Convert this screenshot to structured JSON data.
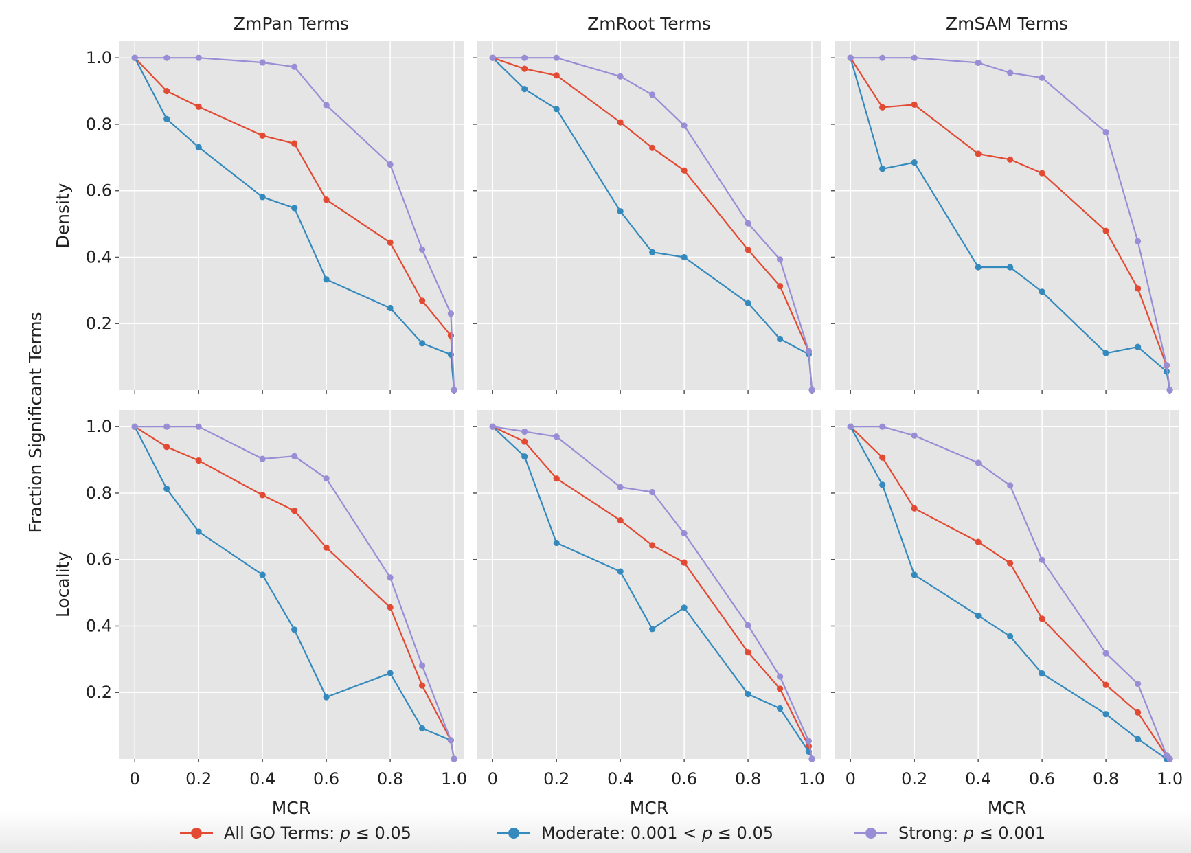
{
  "figure": {
    "y_label": "Fraction Significant Terms",
    "legend": [
      {
        "series": "all",
        "prefix": "All GO Terms: ",
        "var": "p",
        "suffix": " ≤ 0.05",
        "color": "#e24a33"
      },
      {
        "series": "moderate",
        "prefix": "Moderate: 0.001 < ",
        "var": "p",
        "suffix": " ≤ 0.05",
        "color": "#348abd"
      },
      {
        "series": "strong",
        "prefix": "Strong: ",
        "var": "p",
        "suffix": " ≤ 0.001",
        "color": "#988ed5"
      }
    ],
    "legend_placement": "bottom"
  },
  "chart_data": [
    {
      "type": "line",
      "row": "Density",
      "col": "ZmPan Terms",
      "title": "ZmPan Terms",
      "ylabel": "Density",
      "xlabel": "",
      "xlim": [
        -0.05,
        1.03
      ],
      "ylim": [
        0.0,
        1.05
      ],
      "xticks": [
        "0",
        "0.2",
        "0.4",
        "0.6",
        "0.8",
        "1.0"
      ],
      "yticks": [
        "0.2",
        "0.4",
        "0.6",
        "0.8",
        "1.0"
      ],
      "grid": true,
      "x": [
        0,
        0.1,
        0.2,
        0.4,
        0.5,
        0.6,
        0.8,
        0.9,
        0.99,
        1.0
      ],
      "series": [
        {
          "key": "all",
          "color": "#e24a33",
          "values": [
            1.0,
            0.9,
            0.853,
            0.766,
            0.742,
            0.573,
            0.444,
            0.269,
            0.164,
            0.0
          ]
        },
        {
          "key": "moderate",
          "color": "#348abd",
          "values": [
            1.0,
            0.816,
            0.731,
            0.581,
            0.548,
            0.333,
            0.247,
            0.141,
            0.107,
            0.0
          ]
        },
        {
          "key": "strong",
          "color": "#988ed5",
          "values": [
            1.0,
            1.0,
            1.0,
            0.986,
            0.973,
            0.858,
            0.679,
            0.423,
            0.23,
            0.0
          ]
        }
      ]
    },
    {
      "type": "line",
      "row": "Density",
      "col": "ZmRoot Terms",
      "title": "ZmRoot Terms",
      "ylabel": "",
      "xlabel": "",
      "xlim": [
        -0.05,
        1.03
      ],
      "ylim": [
        0.0,
        1.05
      ],
      "xticks": [
        "0",
        "0.2",
        "0.4",
        "0.6",
        "0.8",
        "1.0"
      ],
      "yticks": [
        "0.2",
        "0.4",
        "0.6",
        "0.8",
        "1.0"
      ],
      "grid": true,
      "x": [
        0,
        0.1,
        0.2,
        0.4,
        0.5,
        0.6,
        0.8,
        0.9,
        0.99,
        1.0
      ],
      "series": [
        {
          "key": "all",
          "color": "#e24a33",
          "values": [
            1.0,
            0.967,
            0.947,
            0.806,
            0.729,
            0.661,
            0.422,
            0.313,
            0.116,
            0.0
          ]
        },
        {
          "key": "moderate",
          "color": "#348abd",
          "values": [
            1.0,
            0.906,
            0.846,
            0.538,
            0.415,
            0.4,
            0.262,
            0.154,
            0.108,
            0.0
          ]
        },
        {
          "key": "strong",
          "color": "#988ed5",
          "values": [
            1.0,
            1.0,
            1.0,
            0.944,
            0.889,
            0.796,
            0.502,
            0.393,
            0.118,
            0.0
          ]
        }
      ]
    },
    {
      "type": "line",
      "row": "Density",
      "col": "ZmSAM Terms",
      "title": "ZmSAM Terms",
      "ylabel": "",
      "xlabel": "",
      "xlim": [
        -0.05,
        1.03
      ],
      "ylim": [
        0.0,
        1.05
      ],
      "xticks": [
        "0",
        "0.2",
        "0.4",
        "0.6",
        "0.8",
        "1.0"
      ],
      "yticks": [
        "0.2",
        "0.4",
        "0.6",
        "0.8",
        "1.0"
      ],
      "grid": true,
      "x": [
        0,
        0.1,
        0.2,
        0.4,
        0.5,
        0.6,
        0.8,
        0.9,
        0.99,
        1.0
      ],
      "series": [
        {
          "key": "all",
          "color": "#e24a33",
          "values": [
            1.0,
            0.851,
            0.859,
            0.711,
            0.694,
            0.653,
            0.479,
            0.306,
            0.074,
            0.0
          ]
        },
        {
          "key": "moderate",
          "color": "#348abd",
          "values": [
            1.0,
            0.666,
            0.685,
            0.37,
            0.37,
            0.296,
            0.111,
            0.13,
            0.056,
            0.0
          ]
        },
        {
          "key": "strong",
          "color": "#988ed5",
          "values": [
            1.0,
            1.0,
            1.0,
            0.985,
            0.955,
            0.94,
            0.776,
            0.448,
            0.075,
            0.0
          ]
        }
      ]
    },
    {
      "type": "line",
      "row": "Locality",
      "col": "ZmPan Terms",
      "title": "",
      "ylabel": "Locality",
      "xlabel": "MCR",
      "xlim": [
        -0.05,
        1.03
      ],
      "ylim": [
        0.0,
        1.05
      ],
      "xticks": [
        "0",
        "0.2",
        "0.4",
        "0.6",
        "0.8",
        "1.0"
      ],
      "yticks": [
        "0.2",
        "0.4",
        "0.6",
        "0.8",
        "1.0"
      ],
      "grid": true,
      "x": [
        0,
        0.1,
        0.2,
        0.4,
        0.5,
        0.6,
        0.8,
        0.9,
        0.99,
        1.0
      ],
      "series": [
        {
          "key": "all",
          "color": "#e24a33",
          "values": [
            1.0,
            0.939,
            0.898,
            0.794,
            0.747,
            0.636,
            0.456,
            0.221,
            0.056,
            0.0
          ]
        },
        {
          "key": "moderate",
          "color": "#348abd",
          "values": [
            1.0,
            0.813,
            0.684,
            0.554,
            0.389,
            0.186,
            0.258,
            0.092,
            0.056,
            0.0
          ]
        },
        {
          "key": "strong",
          "color": "#988ed5",
          "values": [
            1.0,
            1.0,
            1.0,
            0.903,
            0.911,
            0.844,
            0.546,
            0.281,
            0.056,
            0.0
          ]
        }
      ]
    },
    {
      "type": "line",
      "row": "Locality",
      "col": "ZmRoot Terms",
      "title": "",
      "ylabel": "",
      "xlabel": "MCR",
      "xlim": [
        -0.05,
        1.03
      ],
      "ylim": [
        0.0,
        1.05
      ],
      "xticks": [
        "0",
        "0.2",
        "0.4",
        "0.6",
        "0.8",
        "1.0"
      ],
      "yticks": [
        "0.2",
        "0.4",
        "0.6",
        "0.8",
        "1.0"
      ],
      "grid": true,
      "x": [
        0,
        0.1,
        0.2,
        0.4,
        0.5,
        0.6,
        0.8,
        0.9,
        0.99,
        1.0
      ],
      "series": [
        {
          "key": "all",
          "color": "#e24a33",
          "values": [
            1.0,
            0.955,
            0.844,
            0.718,
            0.643,
            0.591,
            0.321,
            0.211,
            0.038,
            0.0
          ]
        },
        {
          "key": "moderate",
          "color": "#348abd",
          "values": [
            1.0,
            0.91,
            0.65,
            0.564,
            0.391,
            0.455,
            0.195,
            0.152,
            0.022,
            0.0
          ]
        },
        {
          "key": "strong",
          "color": "#988ed5",
          "values": [
            1.0,
            0.985,
            0.97,
            0.818,
            0.803,
            0.679,
            0.402,
            0.248,
            0.054,
            0.0
          ]
        }
      ]
    },
    {
      "type": "line",
      "row": "Locality",
      "col": "ZmSAM Terms",
      "title": "",
      "ylabel": "",
      "xlabel": "MCR",
      "xlim": [
        -0.05,
        1.03
      ],
      "ylim": [
        0.0,
        1.05
      ],
      "xticks": [
        "0",
        "0.2",
        "0.4",
        "0.6",
        "0.8",
        "1.0"
      ],
      "yticks": [
        "0.2",
        "0.4",
        "0.6",
        "0.8",
        "1.0"
      ],
      "grid": true,
      "x": [
        0,
        0.1,
        0.2,
        0.4,
        0.5,
        0.6,
        0.8,
        0.9,
        0.99,
        1.0
      ],
      "series": [
        {
          "key": "all",
          "color": "#e24a33",
          "values": [
            1.0,
            0.907,
            0.754,
            0.653,
            0.589,
            0.422,
            0.223,
            0.14,
            0.009,
            0.0
          ]
        },
        {
          "key": "moderate",
          "color": "#348abd",
          "values": [
            1.0,
            0.825,
            0.554,
            0.431,
            0.369,
            0.257,
            0.135,
            0.06,
            0.0,
            0.0
          ]
        },
        {
          "key": "strong",
          "color": "#988ed5",
          "values": [
            1.0,
            1.0,
            0.973,
            0.891,
            0.823,
            0.599,
            0.318,
            0.226,
            0.011,
            0.0
          ]
        }
      ]
    }
  ]
}
